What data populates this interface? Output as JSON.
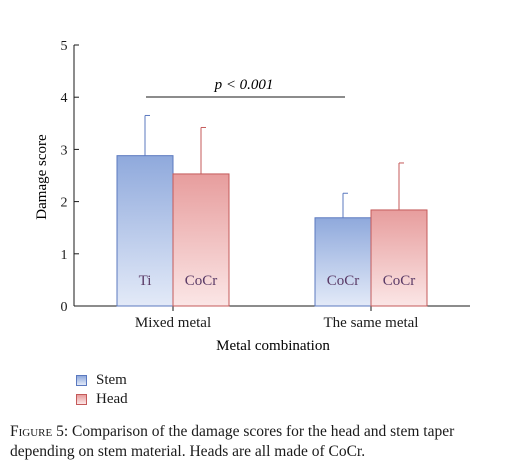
{
  "chart_data": {
    "type": "bar",
    "categories": [
      "Mixed metal",
      "The same metal"
    ],
    "series": [
      {
        "name": "Stem",
        "values": [
          2.88,
          1.69
        ],
        "errors": [
          0.77,
          0.47
        ],
        "bar_labels": [
          "Ti",
          "CoCr"
        ],
        "color_top": "#8fa9dc",
        "color_bottom": "#e3eaf8",
        "stroke": "#5b79bf"
      },
      {
        "name": "Head",
        "values": [
          2.53,
          1.84
        ],
        "errors": [
          0.89,
          0.9
        ],
        "bar_labels": [
          "CoCr",
          "CoCr"
        ],
        "color_top": "#e79d9d",
        "color_bottom": "#fbe6e6",
        "stroke": "#c45a5a"
      }
    ],
    "xlabel": "Metal combination",
    "ylabel": "Damage score",
    "ylim": [
      0,
      5
    ],
    "yticks": [
      "0",
      "1",
      "2",
      "3",
      "4",
      "5"
    ],
    "annotation": "p < 0.001",
    "bar_label_color": "#5a3a66",
    "legend_position": "bottom-left"
  },
  "caption": {
    "figure_label": "Figure 5:",
    "text": " Comparison of the damage scores for the head and stem taper depending on stem material. Heads are all made of CoCr."
  }
}
